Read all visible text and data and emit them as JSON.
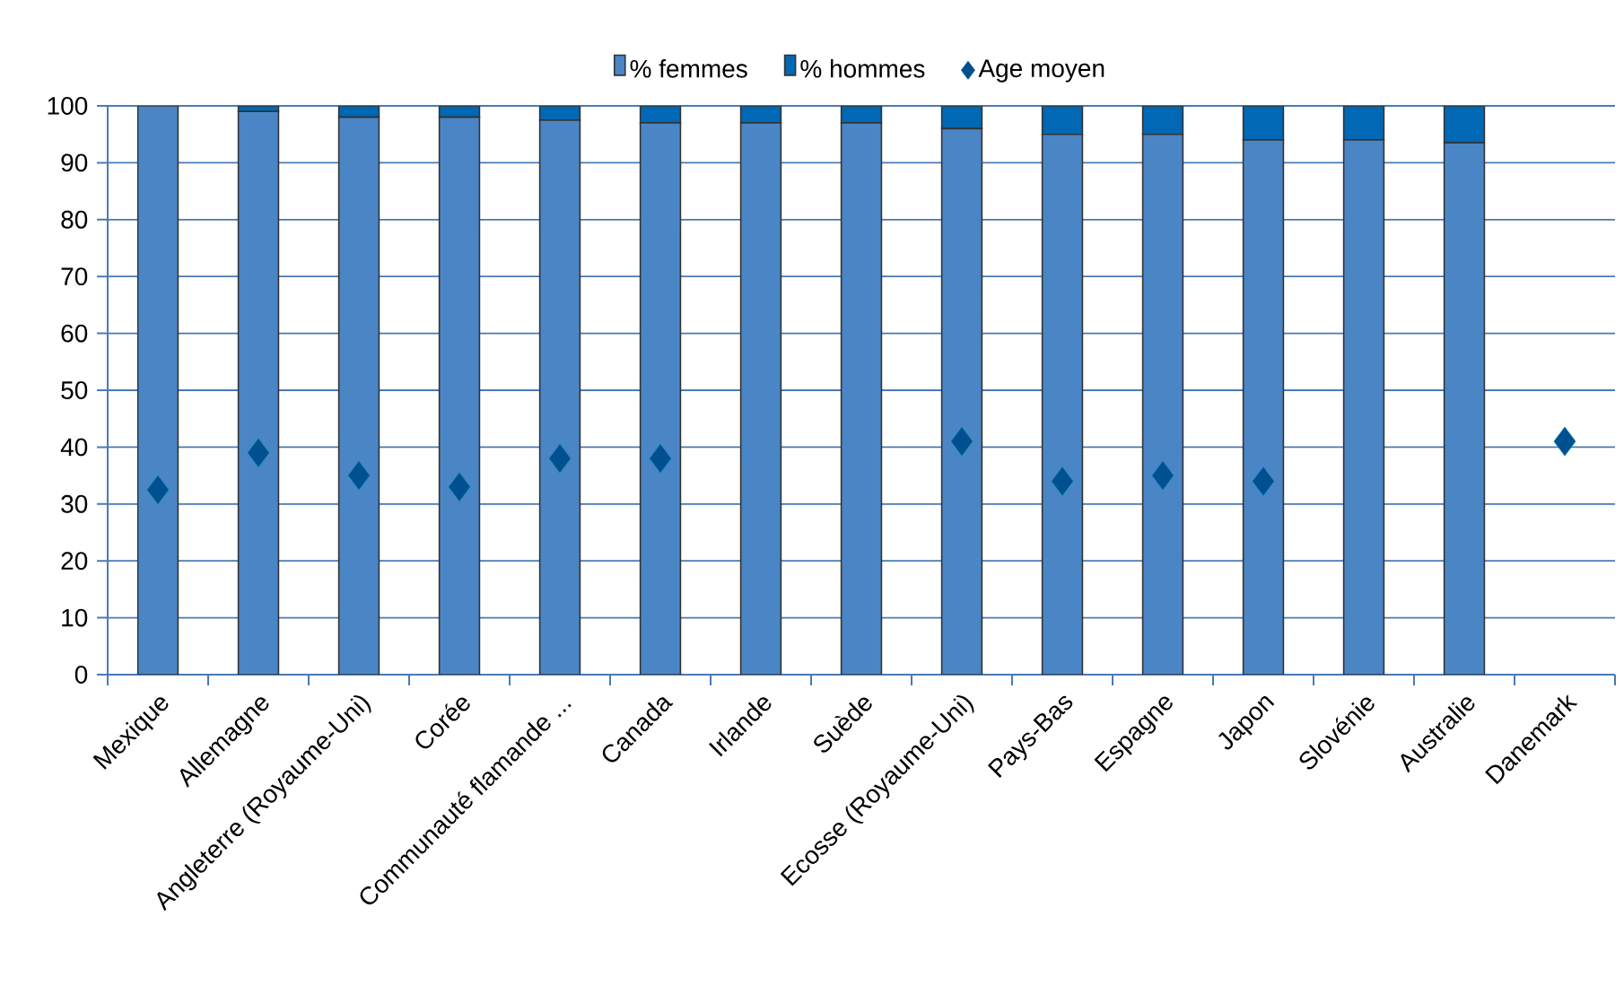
{
  "chart_data": {
    "type": "bar",
    "stacked": true,
    "categories": [
      "Mexique",
      "Allemagne",
      "Angleterre (Royaume-Uni)",
      "Corée",
      "Communauté flamande ...",
      "Canada",
      "Irlande",
      "Suède",
      "Ecosse (Royaume-Uni)",
      "Pays-Bas",
      "Espagne",
      "Japon",
      "Slovénie",
      "Australie",
      "Danemark"
    ],
    "series": [
      {
        "name": "% femmes",
        "color": "#4a86c6",
        "values": [
          100,
          99,
          98,
          98,
          97.5,
          97,
          97,
          97,
          96,
          95,
          95,
          94,
          94,
          93.5,
          null
        ]
      },
      {
        "name": "% hommes",
        "color": "#0068b4",
        "values": [
          0,
          1,
          2,
          2,
          2.5,
          3,
          3,
          3,
          4,
          5,
          5,
          6,
          6,
          6.5,
          null
        ]
      },
      {
        "name": "Age moyen",
        "type": "scatter",
        "color": "#004f8f",
        "marker": "diamond",
        "values": [
          32.5,
          39,
          35,
          33,
          38,
          38,
          null,
          null,
          41,
          34,
          35,
          34,
          null,
          null,
          41
        ]
      }
    ],
    "ylim": [
      0,
      100
    ],
    "yticks": [
      0,
      10,
      20,
      30,
      40,
      50,
      60,
      70,
      80,
      90,
      100
    ],
    "grid": "y",
    "legend": "top"
  }
}
